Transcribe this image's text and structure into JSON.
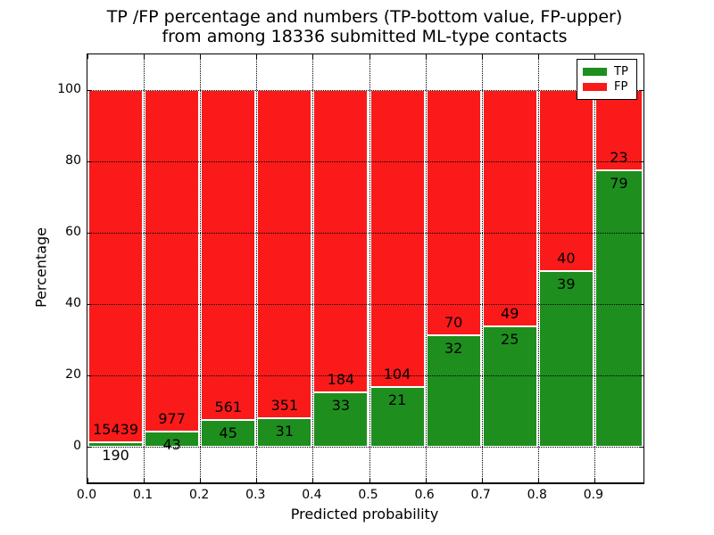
{
  "chart_data": {
    "type": "bar",
    "stacked": true,
    "title_line1": "TP /FP percentage and numbers (TP-bottom value, FP-upper)",
    "title_line2": "from among 18336 submitted ML-type contacts",
    "xlabel": "Predicted probability",
    "ylabel": "Percentage",
    "x_tick_labels": [
      "0.0",
      "0.1",
      "0.2",
      "0.3",
      "0.4",
      "0.5",
      "0.6",
      "0.7",
      "0.8",
      "0.9"
    ],
    "y_ticks": [
      0,
      20,
      40,
      60,
      80,
      100
    ],
    "ylim": [
      -10,
      110
    ],
    "grid": {
      "style": "dotted",
      "color": "#000000",
      "above_bars": true
    },
    "series": [
      {
        "name": "TP",
        "color": "#1e8e1e"
      },
      {
        "name": "FP",
        "color": "#fa1a1a"
      }
    ],
    "legend": {
      "position": "upper right",
      "entries": [
        "TP",
        "FP"
      ]
    },
    "bins": [
      {
        "x_start": 0.0,
        "tp": 190,
        "fp": 15439
      },
      {
        "x_start": 0.1,
        "tp": 43,
        "fp": 977
      },
      {
        "x_start": 0.2,
        "tp": 45,
        "fp": 561
      },
      {
        "x_start": 0.3,
        "tp": 31,
        "fp": 351
      },
      {
        "x_start": 0.4,
        "tp": 33,
        "fp": 184
      },
      {
        "x_start": 0.5,
        "tp": 21,
        "fp": 104
      },
      {
        "x_start": 0.6,
        "tp": 32,
        "fp": 70
      },
      {
        "x_start": 0.7,
        "tp": 25,
        "fp": 49
      },
      {
        "x_start": 0.8,
        "tp": 39,
        "fp": 40
      },
      {
        "x_start": 0.9,
        "tp": 79,
        "fp": 23
      }
    ],
    "bar_label_color": "#000000",
    "total_contacts": 18336
  }
}
